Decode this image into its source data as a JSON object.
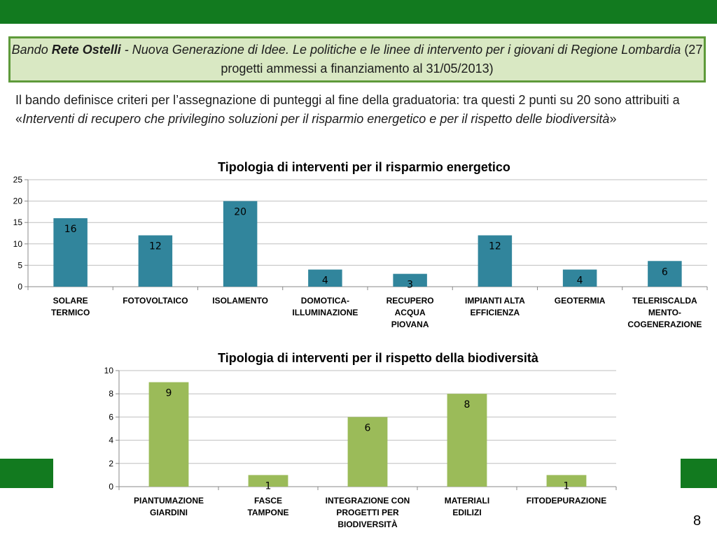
{
  "header": {
    "bando": "Bando",
    "program": "Rete Ostelli",
    "title_rest": "- Nuova Generazione di Idee. Le politiche e le linee di intervento per i giovani di Regione Lombardia",
    "note": "(27 progetti ammessi a finanziamento al 31/05/2013)"
  },
  "intro": {
    "text_plain": "Il bando definisce criteri per l’assegnazione di punteggi al fine della graduatoria: tra questi 2 punti su 20 sono attribuiti a «",
    "text_italic": "Interventi di recupero che privilegino soluzioni per il risparmio energetico e per il rispetto delle biodiversità",
    "text_close": "»"
  },
  "page_number": "8",
  "colors": {
    "brand_green": "#127a1f",
    "energy_bar": "#31859c",
    "biodiversity_bar": "#9bbb59"
  },
  "chart_data": [
    {
      "type": "bar",
      "title": "Tipologia di interventi per il risparmio energetico",
      "categories": [
        [
          "SOLARE",
          "TERMICO"
        ],
        [
          "FOTOVOLTAICO"
        ],
        [
          "ISOLAMENTO"
        ],
        [
          "DOMOTICA-",
          "ILLUMINAZIONE"
        ],
        [
          "RECUPERO",
          "ACQUA",
          "PIOVANA"
        ],
        [
          "IMPIANTI ALTA",
          "EFFICIENZA"
        ],
        [
          "GEOTERMIA"
        ],
        [
          "TELERISCALDA",
          "MENTO-",
          "COGENERAZIONE"
        ]
      ],
      "values": [
        16,
        12,
        20,
        4,
        3,
        12,
        4,
        6
      ],
      "ylim": [
        0,
        25
      ],
      "yticks": [
        0,
        5,
        10,
        15,
        20,
        25
      ],
      "grid": true,
      "legend": "none"
    },
    {
      "type": "bar",
      "title": "Tipologia di interventi per il rispetto della biodiversità",
      "categories": [
        [
          "PIANTUMAZIONE",
          "GIARDINI"
        ],
        [
          "FASCE",
          "TAMPONE"
        ],
        [
          "INTEGRAZIONE CON",
          "PROGETTI PER",
          "BIODIVERSITÀ"
        ],
        [
          "MATERIALI",
          "EDILIZI"
        ],
        [
          "FITODEPURAZIONE"
        ]
      ],
      "values": [
        9,
        1,
        6,
        8,
        1
      ],
      "ylim": [
        0,
        10
      ],
      "yticks": [
        0,
        2,
        4,
        6,
        8,
        10
      ],
      "grid": true,
      "legend": "none"
    }
  ]
}
